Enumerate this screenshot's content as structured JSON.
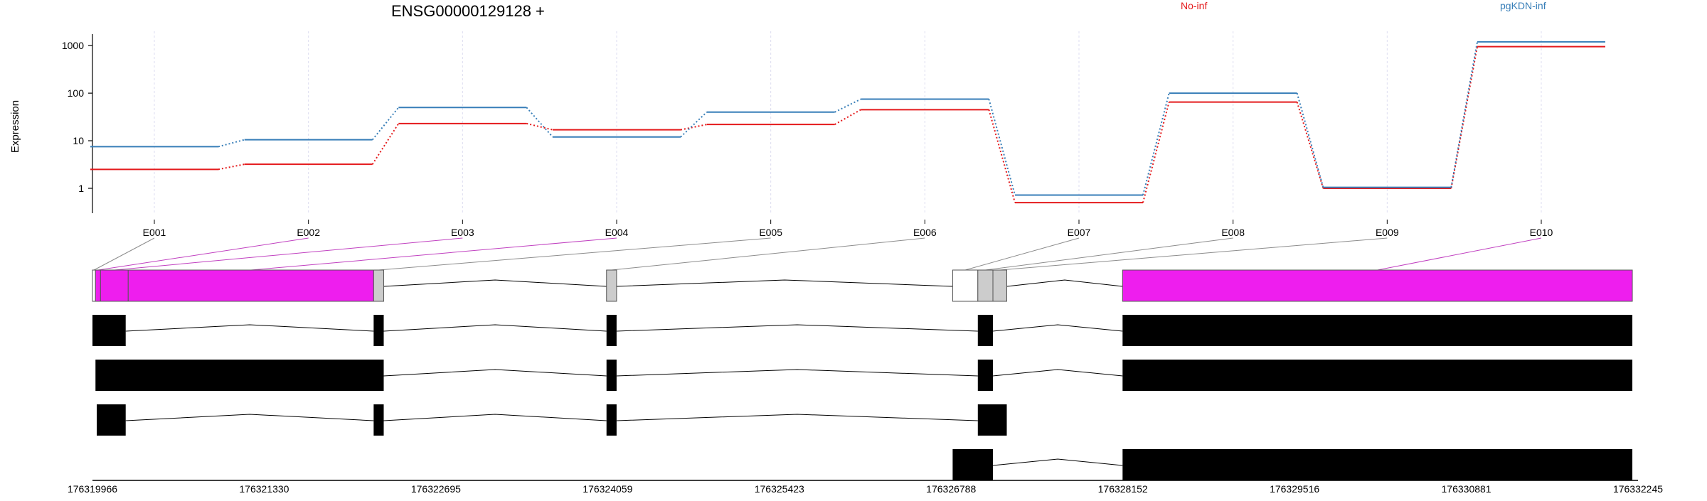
{
  "chart_data": {
    "type": "line",
    "title": "ENSG00000129128 +",
    "ylabel": "Expression",
    "xlabel": "",
    "y_scale": "log",
    "ylim": [
      0.3,
      2000
    ],
    "y_ticks": [
      {
        "value": 1,
        "label": "1"
      },
      {
        "value": 10,
        "label": "10"
      },
      {
        "value": 100,
        "label": "100"
      },
      {
        "value": 1000,
        "label": "1000"
      }
    ],
    "categories": [
      "E001",
      "E002",
      "E003",
      "E004",
      "E005",
      "E006",
      "E007",
      "E008",
      "E009",
      "E010"
    ],
    "series": [
      {
        "name": "No-inf",
        "color": "#e41a1c",
        "values": [
          2.5,
          3.2,
          23,
          17,
          22,
          45,
          0.5,
          65,
          1.0,
          950
        ]
      },
      {
        "name": "pgKDN-inf",
        "color": "#377eb8",
        "values": [
          7.5,
          10.5,
          50,
          12,
          40,
          75,
          0.72,
          100,
          1.05,
          1200
        ]
      }
    ],
    "grid": true,
    "legend_position": "top-right",
    "gene_model": {
      "coord_ticks": [
        "176319966",
        "176321330",
        "176322695",
        "176324059",
        "176325423",
        "176326788",
        "176328152",
        "176329516",
        "176330881",
        "176332245"
      ],
      "coord_min": 176319966,
      "coord_max": 176332245,
      "exon_bins": [
        {
          "id": "E001",
          "start": 176319966,
          "end": 176319990,
          "fill": "#ffffff",
          "highlight": false
        },
        {
          "id": "E002",
          "start": 176319990,
          "end": 176320030,
          "fill": "#ee1eee",
          "highlight": true
        },
        {
          "id": "E003",
          "start": 176320030,
          "end": 176320250,
          "fill": "#ee1eee",
          "highlight": true
        },
        {
          "id": "E004",
          "start": 176320250,
          "end": 176322200,
          "fill": "#ee1eee",
          "highlight": true
        },
        {
          "id": "E005",
          "start": 176322200,
          "end": 176322280,
          "fill": "#cccccc",
          "highlight": false
        },
        {
          "id": "E006",
          "start": 176324050,
          "end": 176324130,
          "fill": "#cccccc",
          "highlight": false
        },
        {
          "id": "E007",
          "start": 176326800,
          "end": 176327000,
          "fill": "#ffffff",
          "highlight": false
        },
        {
          "id": "E008",
          "start": 176327000,
          "end": 176327120,
          "fill": "#cccccc",
          "highlight": false
        },
        {
          "id": "E009",
          "start": 176327120,
          "end": 176327230,
          "fill": "#cccccc",
          "highlight": false
        },
        {
          "id": "E010",
          "start": 176328150,
          "end": 176332200,
          "fill": "#ee1eee",
          "highlight": true
        }
      ],
      "transcripts": [
        [
          [
            176319966,
            176320230
          ],
          [
            176322200,
            176322280
          ],
          [
            176324050,
            176324130
          ],
          [
            176327000,
            176327120
          ],
          [
            176328150,
            176332200
          ]
        ],
        [
          [
            176319990,
            176322280
          ],
          [
            176324050,
            176324130
          ],
          [
            176327000,
            176327120
          ],
          [
            176328150,
            176332200
          ]
        ],
        [
          [
            176320000,
            176320230
          ],
          [
            176322200,
            176322280
          ],
          [
            176324050,
            176324130
          ],
          [
            176327000,
            176327230
          ]
        ],
        [
          [
            176326800,
            176327120
          ],
          [
            176328150,
            176332200
          ]
        ]
      ]
    }
  }
}
